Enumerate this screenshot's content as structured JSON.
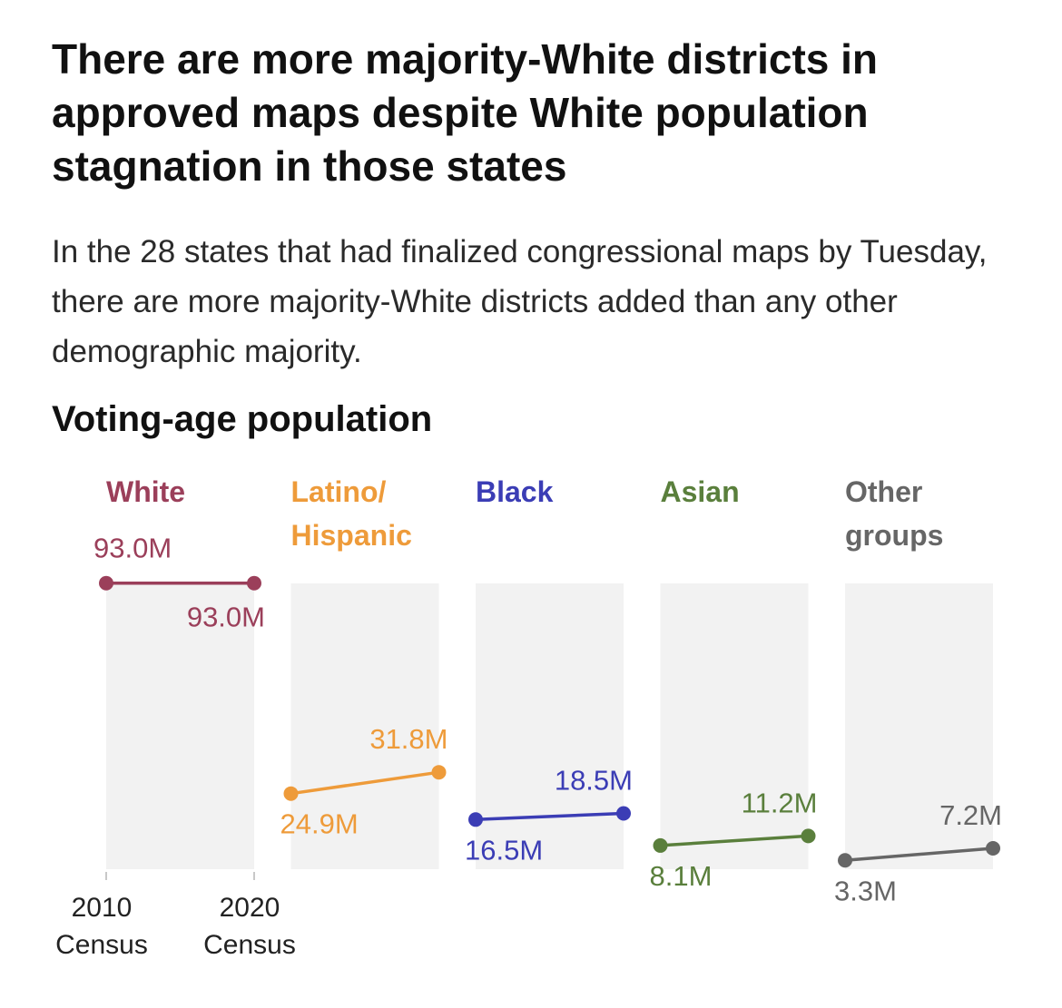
{
  "title": "There are more majority-White districts in approved maps despite White population stagnation in those states",
  "subtitle": "In the 28 states that had finalized congressional maps by Tuesday, there are more majority-White districts added than any other demographic majority.",
  "chart_data": {
    "type": "line",
    "title": "Voting-age population",
    "x": [
      "2010 Census",
      "2020 Census"
    ],
    "x_ticks": [
      {
        "year": "2010",
        "label": "Census"
      },
      {
        "year": "2020",
        "label": "Census"
      }
    ],
    "unit": "M",
    "ylim": [
      0,
      100
    ],
    "series": [
      {
        "name": "White",
        "label_lines": [
          "White"
        ],
        "color": "#9b3f5a",
        "values": [
          93.0,
          93.0
        ],
        "value_labels": [
          "93.0M",
          "93.0M"
        ]
      },
      {
        "name": "Latino/ Hispanic",
        "label_lines": [
          "Latino/",
          "Hispanic"
        ],
        "color": "#ee9b3a",
        "values": [
          24.9,
          31.8
        ],
        "value_labels": [
          "24.9M",
          "31.8M"
        ]
      },
      {
        "name": "Black",
        "label_lines": [
          "Black"
        ],
        "color": "#3b3db5",
        "values": [
          16.5,
          18.5
        ],
        "value_labels": [
          "16.5M",
          "18.5M"
        ]
      },
      {
        "name": "Asian",
        "label_lines": [
          "Asian"
        ],
        "color": "#5a7f3c",
        "values": [
          8.1,
          11.2
        ],
        "value_labels": [
          "8.1M",
          "11.2M"
        ]
      },
      {
        "name": "Other groups",
        "label_lines": [
          "Other",
          "groups"
        ],
        "color": "#666666",
        "values": [
          3.3,
          7.2
        ],
        "value_labels": [
          "3.3M",
          "7.2M"
        ]
      }
    ]
  }
}
